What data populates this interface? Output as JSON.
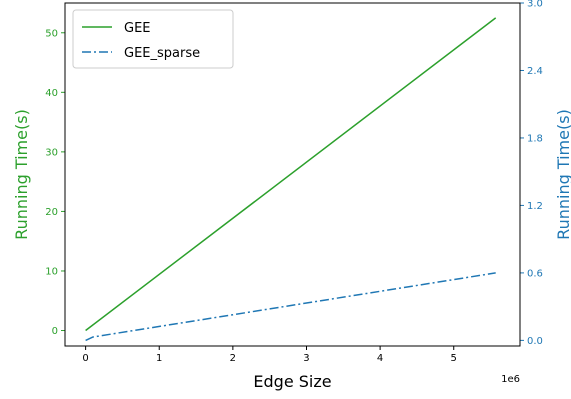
{
  "chart_data": {
    "type": "line",
    "xlabel": "Edge Size",
    "x_offset_label": "1e6",
    "ylabel_left": "Running Time(s)",
    "ylabel_right": "Running Time(s)",
    "xlim": [
      -0.28,
      5.9
    ],
    "ylim_left": [
      -2.6,
      55.0
    ],
    "ylim_right": [
      -0.05,
      3.0
    ],
    "x_ticks": [
      0,
      1,
      2,
      3,
      4,
      5
    ],
    "x_tick_labels": [
      "0",
      "1",
      "2",
      "3",
      "4",
      "5"
    ],
    "left_ticks": [
      0,
      10,
      20,
      30,
      40,
      50
    ],
    "left_tick_labels": [
      "0",
      "10",
      "20",
      "30",
      "40",
      "50"
    ],
    "right_ticks": [
      0.0,
      0.6,
      1.2,
      1.8,
      2.4,
      3.0
    ],
    "right_tick_labels": [
      "0.0",
      "0.6",
      "1.2",
      "1.8",
      "2.4",
      "3.0"
    ],
    "legend_position": "top-left",
    "series": [
      {
        "name": "GEE",
        "axis": "left",
        "color": "#2ca02c",
        "style": "solid",
        "x": [
          0,
          5.57
        ],
        "y": [
          0,
          52.5
        ]
      },
      {
        "name": "GEE_sparse",
        "axis": "right",
        "color": "#1f77b4",
        "style": "dashdot",
        "x": [
          0,
          0.1,
          5.57
        ],
        "y": [
          0.0,
          0.03,
          0.6
        ]
      }
    ],
    "colors": {
      "left_axis": "#2ca02c",
      "right_axis": "#1f77b4"
    }
  }
}
